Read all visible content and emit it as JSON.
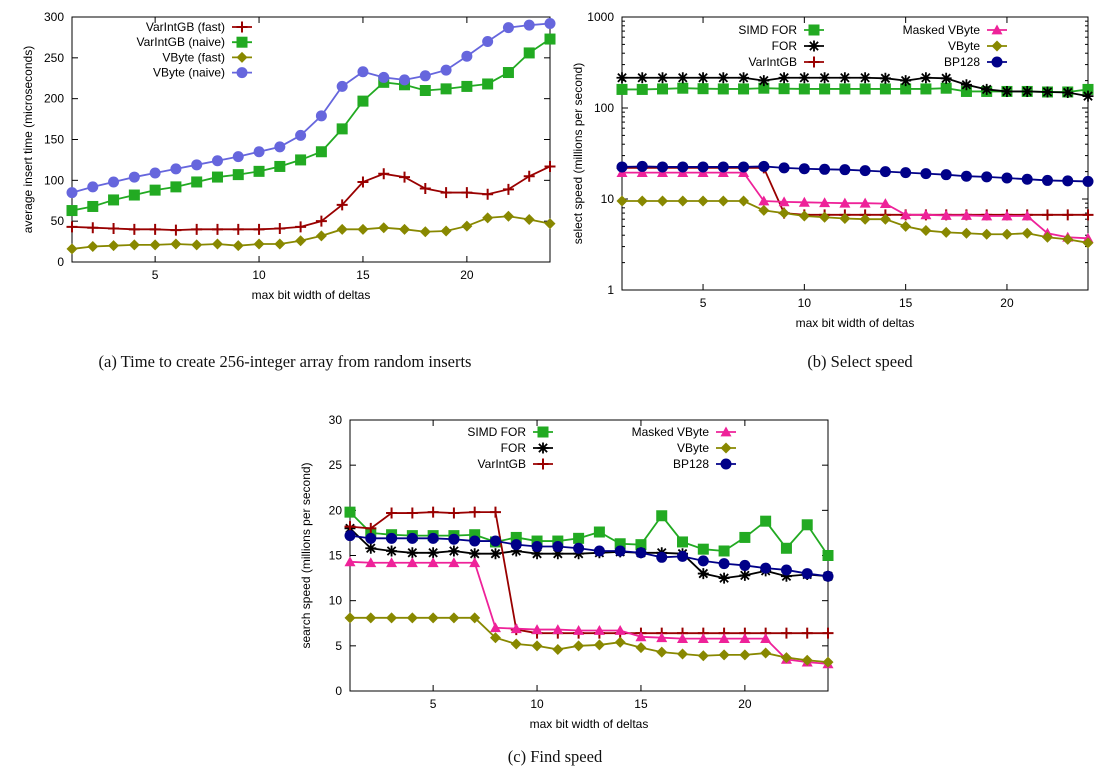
{
  "captions": {
    "a": "(a) Time to create 256-integer array from random inserts",
    "b": "(b) Select speed",
    "c": "(c) Find speed"
  },
  "chart_data": [
    {
      "id": "a",
      "type": "line",
      "xlabel": "max bit width of deltas",
      "ylabel": "average insert time (microseconds)",
      "xlim": [
        1,
        24
      ],
      "ylim": [
        0,
        300
      ],
      "xticks": [
        5,
        10,
        15,
        20
      ],
      "yticks": [
        0,
        50,
        100,
        150,
        200,
        250,
        300
      ],
      "legend_position": "top-left",
      "x": [
        1,
        2,
        3,
        4,
        5,
        6,
        7,
        8,
        9,
        10,
        11,
        12,
        13,
        14,
        15,
        16,
        17,
        18,
        19,
        20,
        21,
        22,
        23,
        24
      ],
      "series": [
        {
          "name": "VarIntGB (fast)",
          "color": "#990000",
          "marker": "plus",
          "values": [
            43,
            42,
            41,
            40,
            40,
            39,
            40,
            40,
            40,
            40,
            41,
            43,
            50,
            70,
            98,
            108,
            104,
            90,
            85,
            85,
            83,
            89,
            105,
            117
          ]
        },
        {
          "name": "VarIntGB (naive)",
          "color": "#22aa22",
          "marker": "square",
          "values": [
            63,
            68,
            76,
            82,
            88,
            92,
            98,
            104,
            107,
            111,
            117,
            125,
            135,
            163,
            197,
            220,
            217,
            210,
            212,
            215,
            218,
            232,
            256,
            273
          ]
        },
        {
          "name": "VByte (fast)",
          "color": "#888800",
          "marker": "diamond",
          "values": [
            16,
            19,
            20,
            21,
            21,
            22,
            21,
            22,
            20,
            22,
            22,
            26,
            32,
            40,
            40,
            42,
            40,
            37,
            38,
            44,
            54,
            56,
            52,
            47
          ]
        },
        {
          "name": "VByte (naive)",
          "color": "#6666dd",
          "marker": "circle",
          "values": [
            85,
            92,
            98,
            104,
            109,
            114,
            119,
            124,
            129,
            135,
            141,
            155,
            179,
            215,
            233,
            226,
            223,
            228,
            235,
            252,
            270,
            287,
            290,
            292
          ]
        }
      ]
    },
    {
      "id": "b",
      "type": "line",
      "log_y": true,
      "xlabel": "max bit width of deltas",
      "ylabel": "select speed (millions per second)",
      "xlim": [
        1,
        24
      ],
      "ylim": [
        1,
        1000
      ],
      "xticks": [
        5,
        10,
        15,
        20
      ],
      "yticks": [
        1,
        10,
        100,
        1000
      ],
      "legend_position": "top-right, two columns",
      "x": [
        1,
        2,
        3,
        4,
        5,
        6,
        7,
        8,
        9,
        10,
        11,
        12,
        13,
        14,
        15,
        16,
        17,
        18,
        19,
        20,
        21,
        22,
        23,
        24
      ],
      "series": [
        {
          "name": "SIMD FOR",
          "color": "#22aa22",
          "marker": "square",
          "values": [
            160,
            160,
            162,
            165,
            163,
            162,
            162,
            165,
            163,
            162,
            162,
            162,
            162,
            162,
            162,
            162,
            165,
            152,
            152,
            152,
            152,
            150,
            150,
            160
          ]
        },
        {
          "name": "FOR",
          "color": "#000000",
          "marker": "star",
          "values": [
            215,
            215,
            215,
            215,
            215,
            215,
            215,
            200,
            215,
            215,
            215,
            215,
            215,
            212,
            200,
            215,
            212,
            180,
            160,
            152,
            152,
            150,
            148,
            135
          ]
        },
        {
          "name": "VarIntGB",
          "color": "#990000",
          "marker": "plus",
          "values": [
            22,
            22,
            22,
            22,
            22,
            22,
            22,
            22,
            7,
            6.7,
            6.7,
            6.7,
            6.7,
            6.7,
            6.7,
            6.7,
            6.7,
            6.7,
            6.7,
            6.7,
            6.7,
            6.7,
            6.7,
            6.7
          ]
        },
        {
          "name": "Masked VByte",
          "color": "#ee2299",
          "marker": "triangle",
          "values": [
            19.5,
            19.5,
            19.5,
            19.5,
            19.5,
            19.5,
            19.5,
            9.5,
            9.3,
            9.2,
            9.1,
            9.0,
            9.0,
            8.9,
            6.7,
            6.7,
            6.6,
            6.6,
            6.5,
            6.5,
            6.5,
            4.2,
            3.8,
            3.7
          ]
        },
        {
          "name": "VByte",
          "color": "#888800",
          "marker": "diamond",
          "values": [
            9.5,
            9.5,
            9.5,
            9.5,
            9.5,
            9.5,
            9.5,
            7.5,
            7.0,
            6.5,
            6.3,
            6.1,
            6.0,
            6.0,
            5.0,
            4.5,
            4.3,
            4.2,
            4.1,
            4.1,
            4.2,
            3.8,
            3.6,
            3.3
          ]
        },
        {
          "name": "BP128",
          "color": "#000088",
          "marker": "circle",
          "values": [
            22.5,
            22.8,
            22.5,
            22.5,
            22.5,
            22.5,
            22.5,
            22.8,
            22,
            21.5,
            21.2,
            21,
            20.5,
            20,
            19.5,
            19,
            18.5,
            17.8,
            17.5,
            17,
            16.5,
            16,
            15.8,
            15.6
          ]
        }
      ]
    },
    {
      "id": "c",
      "type": "line",
      "xlabel": "max bit width of deltas",
      "ylabel": "search speed (millions per second)",
      "xlim": [
        1,
        24
      ],
      "ylim": [
        0,
        30
      ],
      "xticks": [
        5,
        10,
        15,
        20
      ],
      "yticks": [
        0,
        5,
        10,
        15,
        20,
        25,
        30
      ],
      "legend_position": "top-right, two columns",
      "x": [
        1,
        2,
        3,
        4,
        5,
        6,
        7,
        8,
        9,
        10,
        11,
        12,
        13,
        14,
        15,
        16,
        17,
        18,
        19,
        20,
        21,
        22,
        23,
        24
      ],
      "series": [
        {
          "name": "SIMD FOR",
          "color": "#22aa22",
          "marker": "square",
          "values": [
            19.8,
            17.5,
            17.3,
            17.2,
            17.2,
            17.2,
            17.3,
            16.5,
            17.0,
            16.6,
            16.6,
            16.9,
            17.6,
            16.3,
            16.2,
            19.4,
            16.5,
            15.7,
            15.5,
            17.0,
            18.8,
            15.8,
            18.4,
            15.0
          ]
        },
        {
          "name": "FOR",
          "color": "#000000",
          "marker": "star",
          "values": [
            18.0,
            15.8,
            15.5,
            15.3,
            15.3,
            15.5,
            15.2,
            15.2,
            15.5,
            15.2,
            15.2,
            15.2,
            15.3,
            15.4,
            15.3,
            15.3,
            15.2,
            13.0,
            12.5,
            12.8,
            13.3,
            12.7,
            12.9,
            12.7
          ]
        },
        {
          "name": "VarIntGB",
          "color": "#990000",
          "marker": "plus",
          "values": [
            18.2,
            18.0,
            19.7,
            19.7,
            19.8,
            19.7,
            19.8,
            19.8,
            6.8,
            6.4,
            6.4,
            6.4,
            6.4,
            6.4,
            6.4,
            6.4,
            6.4,
            6.4,
            6.4,
            6.4,
            6.4,
            6.4,
            6.4,
            6.4
          ]
        },
        {
          "name": "Masked VByte",
          "color": "#ee2299",
          "marker": "triangle",
          "values": [
            14.3,
            14.2,
            14.2,
            14.2,
            14.2,
            14.2,
            14.2,
            7.0,
            6.9,
            6.8,
            6.8,
            6.7,
            6.7,
            6.7,
            6.0,
            5.9,
            5.8,
            5.8,
            5.8,
            5.8,
            5.8,
            3.5,
            3.2,
            3.0
          ]
        },
        {
          "name": "VByte",
          "color": "#888800",
          "marker": "diamond",
          "values": [
            8.1,
            8.1,
            8.1,
            8.1,
            8.1,
            8.1,
            8.1,
            5.9,
            5.2,
            5.0,
            4.6,
            5.0,
            5.1,
            5.4,
            4.8,
            4.3,
            4.1,
            3.9,
            4.0,
            4.0,
            4.2,
            3.7,
            3.4,
            3.2
          ]
        },
        {
          "name": "BP128",
          "color": "#000088",
          "marker": "circle",
          "values": [
            17.2,
            16.9,
            16.9,
            16.9,
            16.9,
            16.8,
            16.6,
            16.6,
            16.2,
            16.0,
            16.0,
            15.8,
            15.5,
            15.5,
            15.3,
            14.8,
            14.9,
            14.4,
            14.1,
            13.9,
            13.6,
            13.4,
            13.0,
            12.7
          ]
        }
      ]
    }
  ]
}
